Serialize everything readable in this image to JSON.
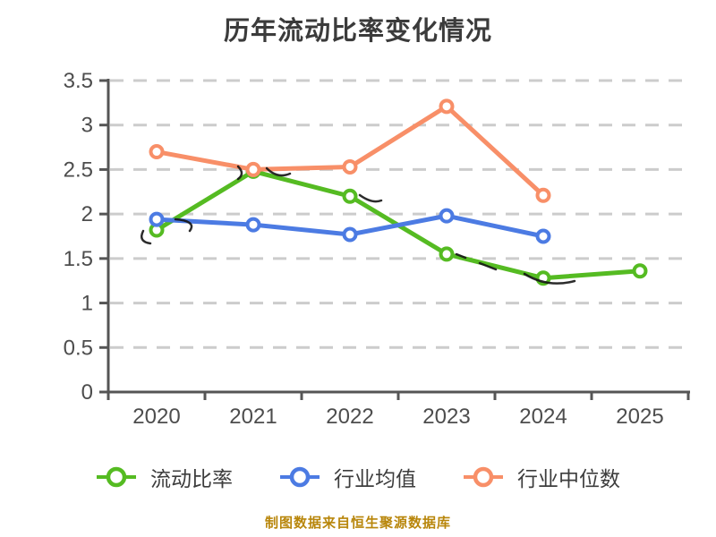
{
  "page": {
    "background": "#ffffff",
    "footer": {
      "text": "制图数据来自恒生聚源数据库",
      "color": "#B8860B"
    }
  },
  "chart_data": {
    "type": "line",
    "title": "历年流动比率变化情况",
    "title_color": "#3b3b3b",
    "categories": [
      "2020",
      "2021",
      "2022",
      "2023",
      "2024",
      "2025"
    ],
    "series": [
      {
        "name": "流动比率",
        "color": "#55BB22",
        "values": [
          1.82,
          2.48,
          2.2,
          1.55,
          1.28,
          1.36
        ]
      },
      {
        "name": "行业均值",
        "color": "#4C7BE3",
        "values": [
          1.94,
          1.88,
          1.77,
          1.98,
          1.75,
          null
        ]
      },
      {
        "name": "行业中位数",
        "color": "#F88F68",
        "values": [
          2.7,
          2.5,
          2.53,
          3.21,
          2.21,
          null
        ]
      }
    ],
    "ylim": [
      0,
      3.5
    ],
    "ytick_step": 0.5,
    "ytick_labels": [
      "0",
      "0.5",
      "1",
      "1.5",
      "2",
      "2.5",
      "3",
      "3.5"
    ],
    "grid": true,
    "grid_style": "dashed",
    "legend_position": "bottom",
    "marker": "hollow-circle",
    "axis_color": "#555555",
    "grid_color": "#cccccc",
    "label_color": "#4d4d4d"
  }
}
